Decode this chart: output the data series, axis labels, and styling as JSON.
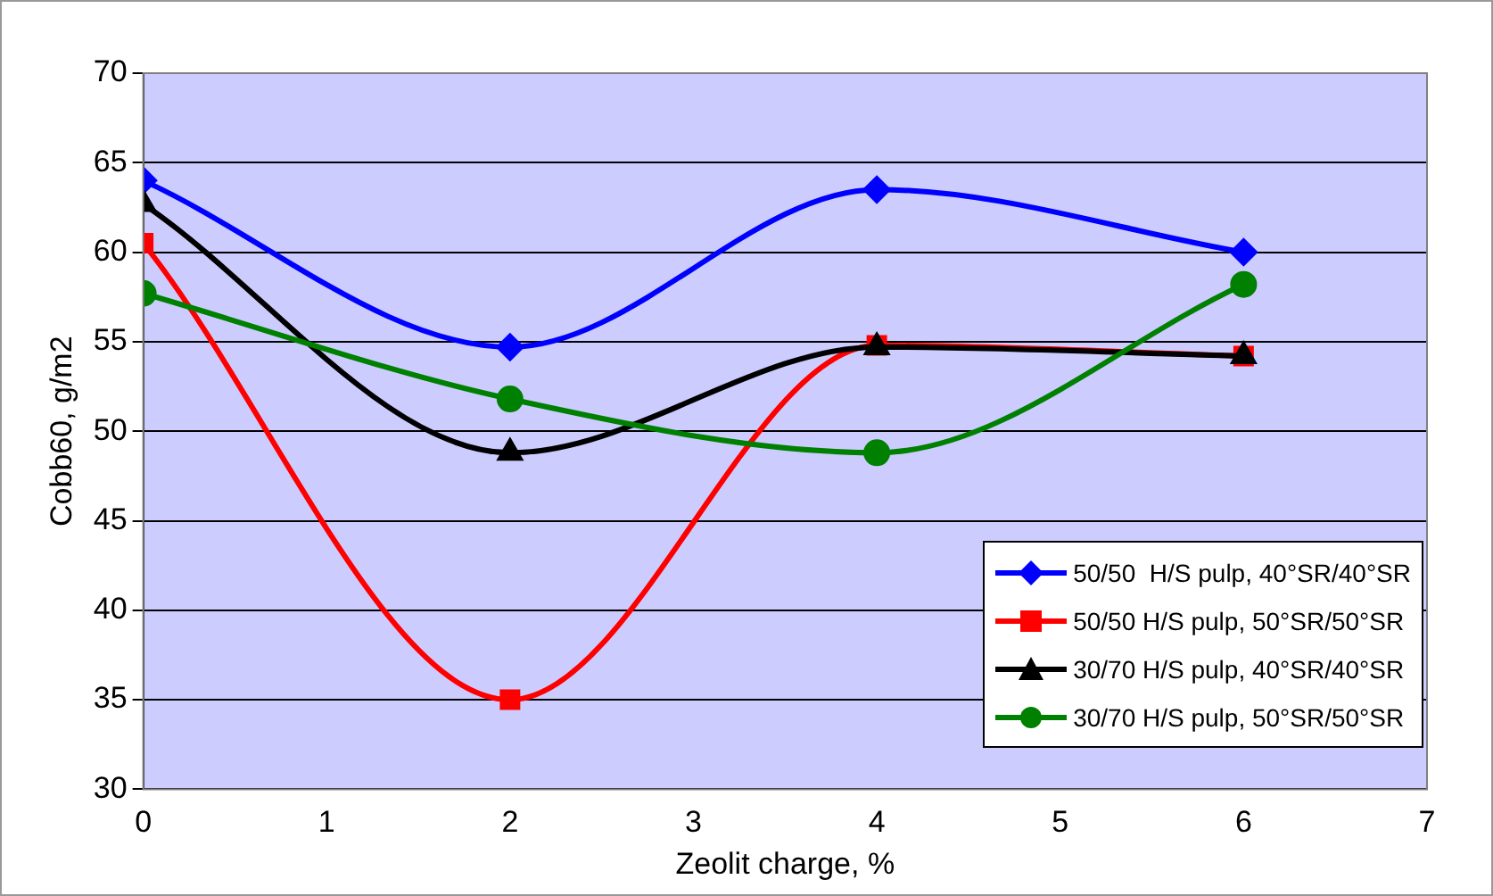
{
  "chart_data": {
    "type": "line",
    "xlabel": "Zeolit charge, %",
    "ylabel": "Cobb60, g/m2",
    "x": [
      0,
      2,
      4,
      6
    ],
    "xlim": [
      0,
      7
    ],
    "xticks": [
      0,
      1,
      2,
      3,
      4,
      5,
      6,
      7
    ],
    "ylim": [
      30,
      70
    ],
    "yticks": [
      30,
      35,
      40,
      45,
      50,
      55,
      60,
      65,
      70
    ],
    "grid": "y",
    "legend": "bottom right",
    "series": [
      {
        "name": "50/50  H/S pulp, 40°SR/40°SR",
        "color": "#0000ff",
        "marker": "diamond",
        "values": [
          64,
          54.7,
          63.5,
          60
        ]
      },
      {
        "name": "50/50 H/S pulp, 50°SR/50°SR",
        "color": "#ff0000",
        "marker": "square",
        "values": [
          60.5,
          35,
          54.8,
          54.2
        ]
      },
      {
        "name": "30/70 H/S pulp, 40°SR/40°SR",
        "color": "#000000",
        "marker": "triangle",
        "values": [
          62.7,
          48.8,
          54.7,
          54.2
        ]
      },
      {
        "name": "30/70 H/S pulp, 50°SR/50°SR",
        "color": "#008000",
        "marker": "circle",
        "values": [
          57.7,
          51.8,
          48.8,
          58.2
        ]
      }
    ]
  }
}
